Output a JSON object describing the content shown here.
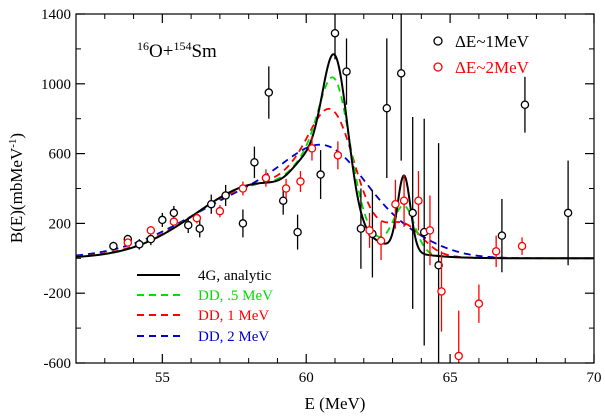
{
  "chart_data": {
    "type": "line",
    "title": "16O+154Sm",
    "title_parts": {
      "mass1": "16",
      "el1": "O+",
      "mass2": "154",
      "el2": "Sm"
    },
    "xlabel": "E (MeV)",
    "ylabel": "B(E)(mbMeV-1)",
    "ylabel_parts": {
      "main": "B(E)(mbMeV",
      "sup": "-1",
      "end": ")"
    },
    "xlim": [
      52,
      70
    ],
    "ylim": [
      -600,
      1400
    ],
    "xticks": [
      55,
      60,
      65,
      70
    ],
    "yticks": [
      -600,
      -200,
      200,
      600,
      1000,
      1400
    ],
    "grid": false,
    "legend_top": [
      {
        "label": "ΔE~1MeV",
        "color": "#000000",
        "marker": "circle"
      },
      {
        "label": "ΔE~2MeV",
        "color": "#ff0000",
        "marker": "circle"
      }
    ],
    "legend_bottom": [
      {
        "label": "4G, analytic",
        "color": "#000000",
        "dash": "solid"
      },
      {
        "label": "DD, .5 MeV",
        "color": "#00dd00",
        "dash": "dashed"
      },
      {
        "label": "DD, 1 MeV",
        "color": "#ff0000",
        "dash": "dashed"
      },
      {
        "label": "DD, 2 MeV",
        "color": "#0000cc",
        "dash": "dashed"
      }
    ],
    "points_1mev": [
      {
        "x": 53.3,
        "y": 70,
        "err": 25
      },
      {
        "x": 53.8,
        "y": 110,
        "err": 25
      },
      {
        "x": 54.2,
        "y": 80,
        "err": 30
      },
      {
        "x": 54.6,
        "y": 110,
        "err": 35
      },
      {
        "x": 55.0,
        "y": 220,
        "err": 40
      },
      {
        "x": 55.4,
        "y": 260,
        "err": 40
      },
      {
        "x": 55.9,
        "y": 190,
        "err": 45
      },
      {
        "x": 56.3,
        "y": 170,
        "err": 50
      },
      {
        "x": 56.7,
        "y": 310,
        "err": 55
      },
      {
        "x": 57.2,
        "y": 360,
        "err": 60
      },
      {
        "x": 57.8,
        "y": 200,
        "err": 80
      },
      {
        "x": 58.2,
        "y": 550,
        "err": 90
      },
      {
        "x": 58.7,
        "y": 950,
        "err": 150
      },
      {
        "x": 59.2,
        "y": 330,
        "err": 80
      },
      {
        "x": 59.7,
        "y": 150,
        "err": 100
      },
      {
        "x": 60.5,
        "y": 480,
        "err": 140
      },
      {
        "x": 61.0,
        "y": 1290,
        "err": 150
      },
      {
        "x": 61.4,
        "y": 1070,
        "err": 190
      },
      {
        "x": 61.9,
        "y": 170,
        "err": 230
      },
      {
        "x": 62.3,
        "y": 140,
        "err": 250
      },
      {
        "x": 62.8,
        "y": 860,
        "err": 400
      },
      {
        "x": 63.3,
        "y": 1060,
        "err": 500
      },
      {
        "x": 63.7,
        "y": 260,
        "err": 550
      },
      {
        "x": 64.1,
        "y": 150,
        "err": 650
      },
      {
        "x": 64.6,
        "y": -40,
        "err": 700
      },
      {
        "x": 66.8,
        "y": 130,
        "err": 210
      },
      {
        "x": 67.6,
        "y": 880,
        "err": 160
      },
      {
        "x": 69.1,
        "y": 260,
        "err": 300
      }
    ],
    "points_2mev": [
      {
        "x": 53.8,
        "y": 90,
        "err": 20
      },
      {
        "x": 54.6,
        "y": 160,
        "err": 25
      },
      {
        "x": 55.4,
        "y": 210,
        "err": 25
      },
      {
        "x": 56.2,
        "y": 230,
        "err": 30
      },
      {
        "x": 57.0,
        "y": 270,
        "err": 35
      },
      {
        "x": 57.8,
        "y": 400,
        "err": 40
      },
      {
        "x": 58.6,
        "y": 460,
        "err": 50
      },
      {
        "x": 59.3,
        "y": 400,
        "err": 55
      },
      {
        "x": 59.8,
        "y": 440,
        "err": 60
      },
      {
        "x": 60.2,
        "y": 630,
        "err": 70
      },
      {
        "x": 61.1,
        "y": 590,
        "err": 80
      },
      {
        "x": 62.2,
        "y": 160,
        "err": 100
      },
      {
        "x": 62.6,
        "y": 100,
        "err": 110
      },
      {
        "x": 63.1,
        "y": 310,
        "err": 140
      },
      {
        "x": 63.4,
        "y": 330,
        "err": 150
      },
      {
        "x": 63.9,
        "y": 330,
        "err": 170
      },
      {
        "x": 64.3,
        "y": 160,
        "err": 200
      },
      {
        "x": 64.7,
        "y": -190,
        "err": 230
      },
      {
        "x": 65.3,
        "y": -560,
        "err": 260
      },
      {
        "x": 66.0,
        "y": -260,
        "err": 110
      },
      {
        "x": 66.6,
        "y": 40,
        "err": 90
      },
      {
        "x": 67.5,
        "y": 70,
        "err": 50
      }
    ],
    "curve_4g": {
      "baseline": 0,
      "components": [
        {
          "A": 430,
          "mu": 58.5,
          "sigma": 2.3
        },
        {
          "A": 190,
          "mu": 60.0,
          "sigma": 0.5
        },
        {
          "A": 900,
          "mu": 61.0,
          "sigma": 0.45
        },
        {
          "A": 430,
          "mu": 63.4,
          "sigma": 0.22
        }
      ]
    },
    "dd_widths": [
      0.5,
      1.0,
      2.0
    ]
  }
}
